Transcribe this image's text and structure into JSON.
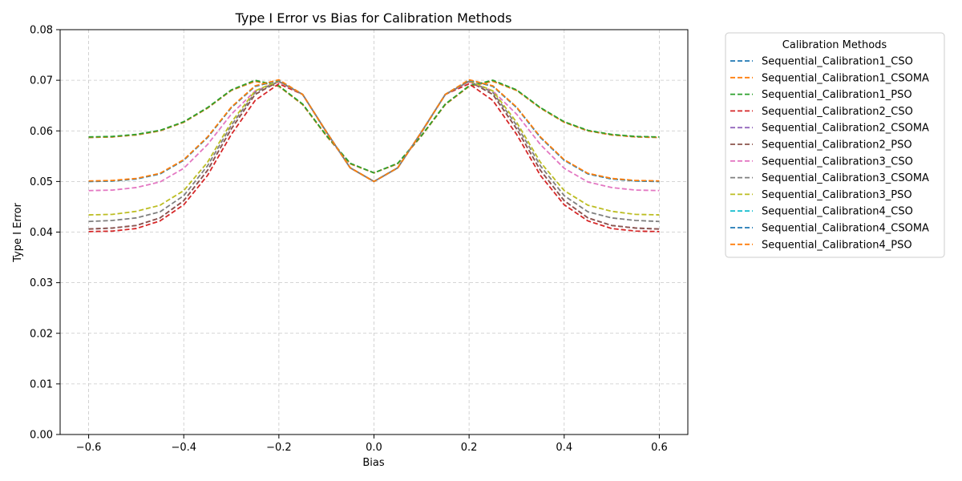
{
  "chart_data": {
    "type": "line",
    "title": "Type I Error vs Bias for Calibration Methods",
    "xlabel": "Bias",
    "ylabel": "Type I Error",
    "xlim": [
      -0.66,
      0.66
    ],
    "ylim": [
      0,
      0.08
    ],
    "xticks": [
      -0.6,
      -0.4,
      -0.2,
      0.0,
      0.2,
      0.4,
      0.6
    ],
    "xtick_labels": [
      "−0.6",
      "−0.4",
      "−0.2",
      "0.0",
      "0.2",
      "0.4",
      "0.6"
    ],
    "yticks": [
      0,
      0.01,
      0.02,
      0.03,
      0.04,
      0.05,
      0.06,
      0.07,
      0.08
    ],
    "ytick_labels": [
      "0.00",
      "0.01",
      "0.02",
      "0.03",
      "0.04",
      "0.05",
      "0.06",
      "0.07",
      "0.08"
    ],
    "grid": true,
    "legend_title": "Calibration Methods",
    "legend_position": "outside-right",
    "x": [
      -0.6,
      -0.55,
      -0.5,
      -0.45,
      -0.4,
      -0.35,
      -0.3,
      -0.25,
      -0.2,
      -0.15,
      -0.1,
      -0.05,
      0.0,
      0.05,
      0.1,
      0.15,
      0.2,
      0.25,
      0.3,
      0.35,
      0.4,
      0.45,
      0.5,
      0.55,
      0.6
    ],
    "series": [
      {
        "name": "Sequential_Calibration1_CSO",
        "color": "#1f77b4",
        "values": [
          0.0587,
          0.0588,
          0.0592,
          0.06,
          0.0617,
          0.0645,
          0.068,
          0.0698,
          0.0688,
          0.0652,
          0.059,
          0.0535,
          0.0517,
          0.0535,
          0.059,
          0.0652,
          0.0688,
          0.0698,
          0.068,
          0.0645,
          0.0617,
          0.06,
          0.0592,
          0.0588,
          0.0587
        ]
      },
      {
        "name": "Sequential_Calibration1_CSOMA",
        "color": "#ff7f0e",
        "values": [
          0.0587,
          0.0588,
          0.0592,
          0.06,
          0.0617,
          0.0645,
          0.068,
          0.0698,
          0.0688,
          0.0652,
          0.059,
          0.0535,
          0.0517,
          0.0535,
          0.059,
          0.0652,
          0.0688,
          0.0698,
          0.068,
          0.0645,
          0.0617,
          0.06,
          0.0592,
          0.0588,
          0.0587
        ]
      },
      {
        "name": "Sequential_Calibration1_PSO",
        "color": "#2ca02c",
        "values": [
          0.0588,
          0.0589,
          0.0593,
          0.0601,
          0.0618,
          0.0646,
          0.0681,
          0.07,
          0.0689,
          0.0653,
          0.0591,
          0.0536,
          0.0517,
          0.0536,
          0.0591,
          0.0653,
          0.0689,
          0.07,
          0.0681,
          0.0646,
          0.0618,
          0.0601,
          0.0593,
          0.0589,
          0.0588
        ]
      },
      {
        "name": "Sequential_Calibration2_CSO",
        "color": "#d62728",
        "values": [
          0.0401,
          0.0402,
          0.0407,
          0.0422,
          0.0454,
          0.0512,
          0.0593,
          0.066,
          0.0693,
          0.0672,
          0.0597,
          0.0527,
          0.05,
          0.0527,
          0.0597,
          0.0672,
          0.0693,
          0.066,
          0.0593,
          0.0512,
          0.0454,
          0.0422,
          0.0407,
          0.0402,
          0.0401
        ]
      },
      {
        "name": "Sequential_Calibration2_CSOMA",
        "color": "#9467bd",
        "values": [
          0.0406,
          0.0408,
          0.0413,
          0.0428,
          0.0462,
          0.0522,
          0.0604,
          0.0672,
          0.0698,
          0.0672,
          0.0598,
          0.0527,
          0.05,
          0.0527,
          0.0598,
          0.0672,
          0.0698,
          0.0672,
          0.0604,
          0.0522,
          0.0462,
          0.0428,
          0.0413,
          0.0408,
          0.0406
        ]
      },
      {
        "name": "Sequential_Calibration2_PSO",
        "color": "#8c564b",
        "values": [
          0.0406,
          0.0408,
          0.0413,
          0.0428,
          0.0462,
          0.0522,
          0.0604,
          0.0672,
          0.0698,
          0.0672,
          0.0598,
          0.0527,
          0.05,
          0.0527,
          0.0598,
          0.0672,
          0.0698,
          0.0672,
          0.0604,
          0.0522,
          0.0462,
          0.0428,
          0.0413,
          0.0408,
          0.0406
        ]
      },
      {
        "name": "Sequential_Calibration3_CSO",
        "color": "#e377c2",
        "values": [
          0.0482,
          0.0483,
          0.0488,
          0.0499,
          0.0526,
          0.0573,
          0.0633,
          0.0679,
          0.0697,
          0.0672,
          0.0598,
          0.0527,
          0.05,
          0.0527,
          0.0598,
          0.0672,
          0.0697,
          0.0679,
          0.0633,
          0.0573,
          0.0526,
          0.0499,
          0.0488,
          0.0483,
          0.0482
        ]
      },
      {
        "name": "Sequential_Calibration3_CSOMA",
        "color": "#7f7f7f",
        "values": [
          0.0421,
          0.0423,
          0.0428,
          0.044,
          0.0472,
          0.0531,
          0.0611,
          0.0676,
          0.0698,
          0.0672,
          0.0598,
          0.0527,
          0.05,
          0.0527,
          0.0598,
          0.0672,
          0.0698,
          0.0676,
          0.0611,
          0.0531,
          0.0472,
          0.044,
          0.0428,
          0.0423,
          0.0421
        ]
      },
      {
        "name": "Sequential_Calibration3_PSO",
        "color": "#bcbd22",
        "values": [
          0.0434,
          0.0435,
          0.0441,
          0.0453,
          0.0482,
          0.0538,
          0.0617,
          0.0679,
          0.0699,
          0.0672,
          0.0598,
          0.0527,
          0.05,
          0.0527,
          0.0598,
          0.0672,
          0.0699,
          0.0679,
          0.0617,
          0.0538,
          0.0482,
          0.0453,
          0.0441,
          0.0435,
          0.0434
        ]
      },
      {
        "name": "Sequential_Calibration4_CSO",
        "color": "#17becf",
        "values": [
          0.05,
          0.0501,
          0.0505,
          0.0515,
          0.0542,
          0.0587,
          0.0646,
          0.0688,
          0.07,
          0.0672,
          0.0598,
          0.0527,
          0.05,
          0.0527,
          0.0598,
          0.0672,
          0.07,
          0.0688,
          0.0646,
          0.0587,
          0.0542,
          0.0515,
          0.0505,
          0.0501,
          0.05
        ]
      },
      {
        "name": "Sequential_Calibration4_CSOMA",
        "color": "#1f77b4",
        "values": [
          0.05,
          0.0501,
          0.0505,
          0.0515,
          0.0542,
          0.0587,
          0.0646,
          0.0688,
          0.07,
          0.0672,
          0.0598,
          0.0527,
          0.05,
          0.0527,
          0.0598,
          0.0672,
          0.07,
          0.0688,
          0.0646,
          0.0587,
          0.0542,
          0.0515,
          0.0505,
          0.0501,
          0.05
        ]
      },
      {
        "name": "Sequential_Calibration4_PSO",
        "color": "#ff7f0e",
        "values": [
          0.0501,
          0.0502,
          0.0506,
          0.0516,
          0.0543,
          0.0588,
          0.0647,
          0.0689,
          0.0701,
          0.0672,
          0.0598,
          0.0527,
          0.05,
          0.0527,
          0.0598,
          0.0672,
          0.0701,
          0.0689,
          0.0647,
          0.0588,
          0.0543,
          0.0516,
          0.0506,
          0.0502,
          0.0501
        ]
      }
    ]
  }
}
